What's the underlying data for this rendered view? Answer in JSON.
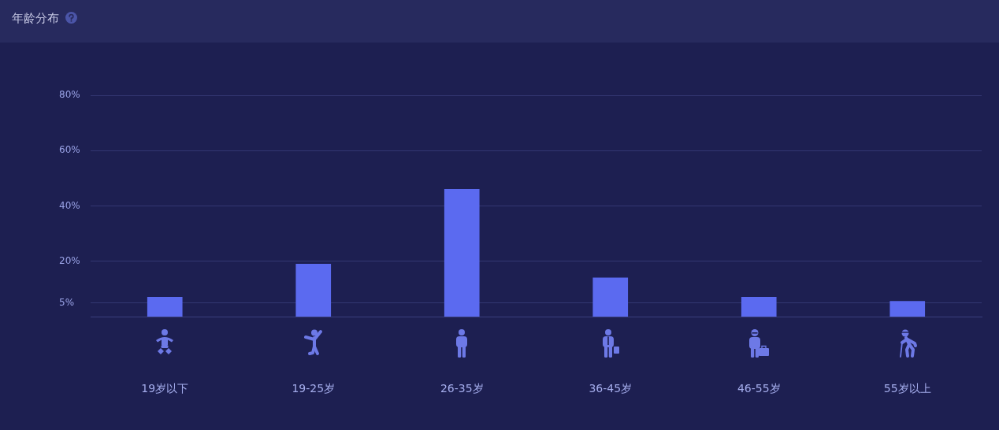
{
  "chart_data": {
    "type": "bar",
    "title": "年龄分布",
    "categories": [
      "19岁以下",
      "19-25岁",
      "26-35岁",
      "36-45岁",
      "46-55岁",
      "55岁以上"
    ],
    "values": [
      7,
      19,
      46,
      14,
      7,
      5.5
    ],
    "color": "#5b6af0",
    "ylim": [
      0,
      80
    ],
    "yticks": [
      {
        "value": 5,
        "label": "5%"
      },
      {
        "value": 20,
        "label": "20%"
      },
      {
        "value": 40,
        "label": "40%"
      },
      {
        "value": 60,
        "label": "60%"
      },
      {
        "value": 80,
        "label": "80%"
      }
    ],
    "grid": "y"
  }
}
